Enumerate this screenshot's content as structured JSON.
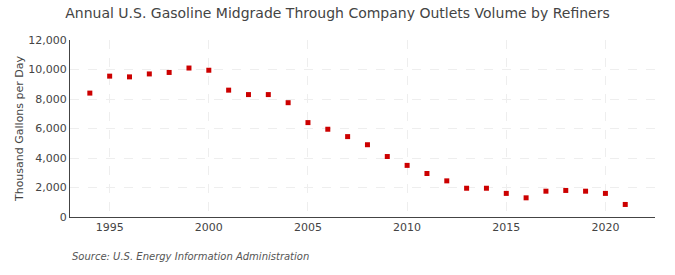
{
  "chart_data": {
    "type": "scatter",
    "title": "Annual U.S. Gasoline Midgrade Through Company Outlets Volume by Refiners",
    "ylabel": "Thousand Gallons per Day",
    "source": "Source: U.S. Energy Information Administration",
    "x": [
      1994,
      1995,
      1996,
      1997,
      1998,
      1999,
      2000,
      2001,
      2002,
      2003,
      2004,
      2005,
      2006,
      2007,
      2008,
      2009,
      2010,
      2011,
      2012,
      2013,
      2014,
      2015,
      2016,
      2017,
      2018,
      2019,
      2020,
      2021
    ],
    "values": [
      8400,
      9550,
      9500,
      9700,
      9800,
      10100,
      9950,
      8600,
      8300,
      8300,
      7750,
      6400,
      5950,
      5450,
      4900,
      4100,
      3500,
      2950,
      2450,
      1950,
      1950,
      1600,
      1300,
      1750,
      1800,
      1750,
      1600,
      850
    ],
    "color": "#cc0000",
    "marker": "square",
    "xlim": [
      1993.0,
      2022.5
    ],
    "xticks": [
      1995,
      2000,
      2005,
      2010,
      2015,
      2020
    ],
    "ylim": [
      0,
      12000
    ],
    "yticks": [
      0,
      {
        "value": 2000,
        "label": "2,000"
      },
      {
        "value": 4000,
        "label": "4,000"
      },
      {
        "value": 6000,
        "label": "6,000"
      },
      {
        "value": 8000,
        "label": "8,000"
      },
      {
        "value": 10000,
        "label": "10,000"
      },
      {
        "value": 12000,
        "label": "12,000"
      }
    ],
    "grid": true
  }
}
